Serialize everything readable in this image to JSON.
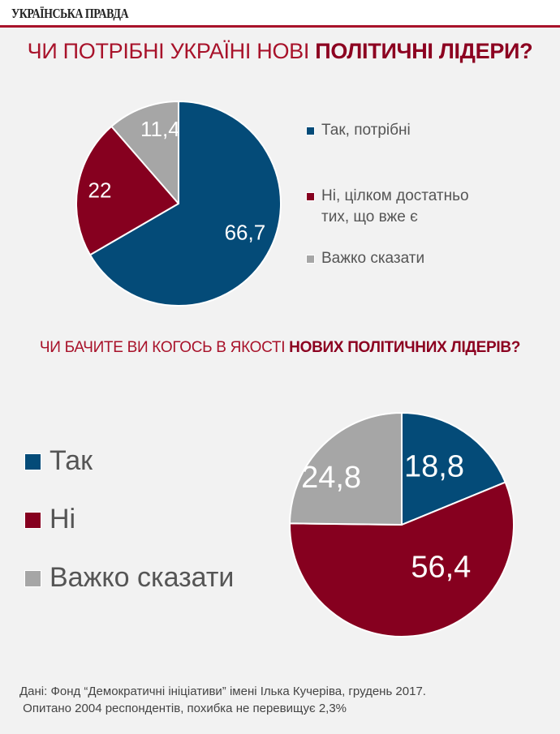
{
  "header": {
    "logo": "УКРАЇНСЬКА ПРАВДА"
  },
  "colors": {
    "accent": "#a8122a",
    "blue": "#044b78",
    "red": "#86001f",
    "grey": "#a6a6a6",
    "background": "#f2f2f2"
  },
  "chart1": {
    "title_plain": "ЧИ ПОТРІБНІ УКРАЇНІ НОВІ ",
    "title_bold": "ПОЛІТИЧНІ ЛІДЕРИ?",
    "legend": [
      {
        "label_line1": "Так, потрібні",
        "label_line2": ""
      },
      {
        "label_line1": "Ні, цілком достатньо",
        "label_line2": "тих, що вже є"
      },
      {
        "label_line1": "Важко сказати",
        "label_line2": ""
      }
    ]
  },
  "chart2": {
    "title_plain": "ЧИ БАЧИТЕ ВИ КОГОСЬ В ЯКОСТІ ",
    "title_bold": "НОВИХ ПОЛІТИЧНИХ ЛІДЕРІВ?",
    "legend": [
      {
        "label": "Так"
      },
      {
        "label": "Ні"
      },
      {
        "label": "Важко сказати"
      }
    ]
  },
  "footer": {
    "line1": "Дані: Фонд “Демократичні ініціативи” імені Ілька Кучеріва, грудень 2017.",
    "line2": " Опитано 2004 респондентів, похибка не перевищує 2,3%"
  },
  "chart_data": [
    {
      "type": "pie",
      "title": "ЧИ ПОТРІБНІ УКРАЇНІ НОВІ ПОЛІТИЧНІ ЛІДЕРИ?",
      "categories": [
        "Так, потрібні",
        "Ні, цілком достатньо тих, що вже є",
        "Важко сказати"
      ],
      "values": [
        66.7,
        22,
        11.4
      ],
      "value_labels": [
        "66,7",
        "22",
        "11,4"
      ],
      "colors": [
        "#044b78",
        "#86001f",
        "#a6a6a6"
      ],
      "start_angle": "12 o'clock, clockwise",
      "legend_position": "right"
    },
    {
      "type": "pie",
      "title": "ЧИ БАЧИТЕ ВИ КОГОСЬ В ЯКОСТІ НОВИХ ПОЛІТИЧНИХ ЛІДЕРІВ?",
      "categories": [
        "Так",
        "Ні",
        "Важко сказати"
      ],
      "values": [
        18.8,
        56.4,
        24.8
      ],
      "value_labels": [
        "18,8",
        "56,4",
        "24,8"
      ],
      "colors": [
        "#044b78",
        "#86001f",
        "#a6a6a6"
      ],
      "start_angle": "12 o'clock, clockwise",
      "legend_position": "left"
    }
  ]
}
